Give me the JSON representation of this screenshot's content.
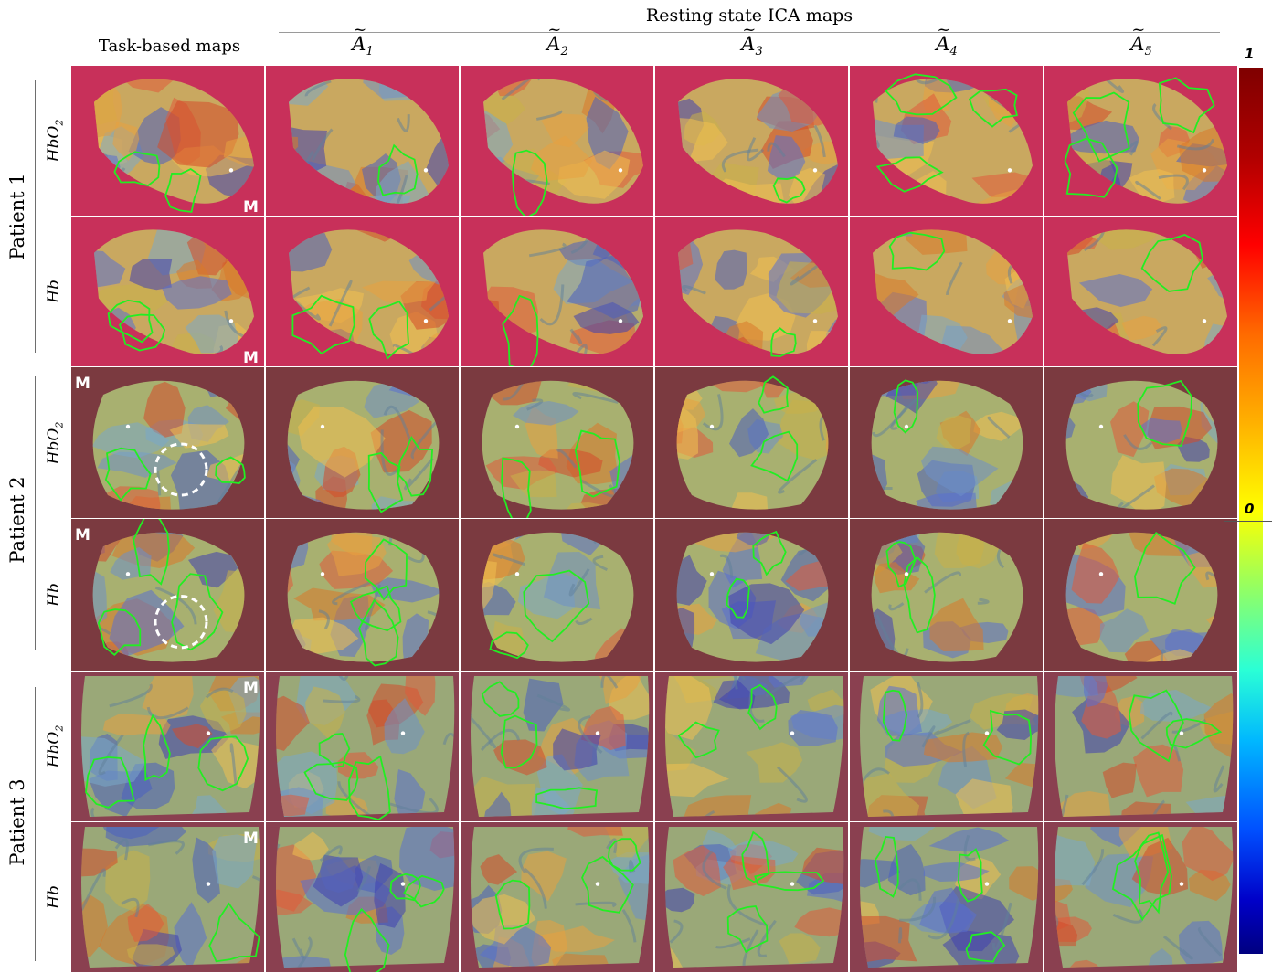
{
  "figure": {
    "top_title": "Resting state ICA maps",
    "task_title": "Task-based maps",
    "columns": [
      {
        "base": "A",
        "sub": "1"
      },
      {
        "base": "A",
        "sub": "2"
      },
      {
        "base": "A",
        "sub": "3"
      },
      {
        "base": "A",
        "sub": "4"
      },
      {
        "base": "A",
        "sub": "5"
      }
    ],
    "patients": [
      {
        "label": "Patient 1",
        "rows": [
          {
            "base": "HbO",
            "sub": "2"
          },
          {
            "base": "Hb",
            "sub": ""
          }
        ]
      },
      {
        "label": "Patient 2",
        "rows": [
          {
            "base": "HbO",
            "sub": "2"
          },
          {
            "base": "Hb",
            "sub": ""
          }
        ]
      },
      {
        "label": "Patient 3",
        "rows": [
          {
            "base": "HbO",
            "sub": "2"
          },
          {
            "base": "Hb",
            "sub": ""
          }
        ]
      }
    ],
    "marker_label": "M",
    "colorbar": {
      "max_label": "1",
      "mid_label": "0"
    }
  }
}
